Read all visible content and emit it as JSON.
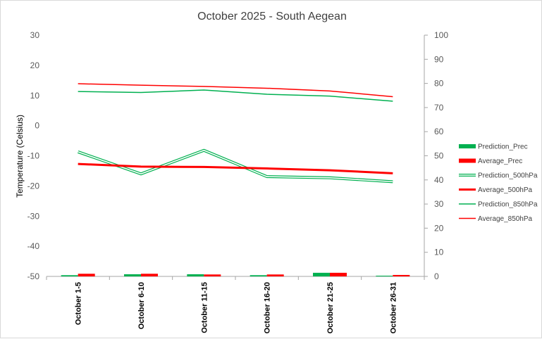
{
  "chart_data": {
    "type": "line",
    "title": "October 2025 - South Aegean",
    "ylabel": "Temperature (Celsius)",
    "xlabel": "",
    "categories": [
      "October 1-5",
      "October 6-10",
      "October 11-15",
      "October 16-20",
      "October 21-25",
      "October 26-31"
    ],
    "y_left": {
      "min": -50,
      "max": 30,
      "step": 10,
      "ticks": [
        "30",
        "20",
        "10",
        "0",
        "-10",
        "-20",
        "-30",
        "-40",
        "-50"
      ]
    },
    "y_right": {
      "min": 0,
      "max": 100,
      "step": 10,
      "ticks": [
        "100",
        "90",
        "80",
        "70",
        "60",
        "50",
        "40",
        "30",
        "20",
        "10",
        "0"
      ]
    },
    "gridlines": false,
    "legend_position": "right",
    "series": [
      {
        "name": "Prediction_Prec",
        "kind": "bar",
        "axis": "right",
        "color": "#00b050",
        "values": [
          0.5,
          0.9,
          0.9,
          0.5,
          1.5,
          0.3
        ]
      },
      {
        "name": "Average_Prec",
        "kind": "bar",
        "axis": "right",
        "color": "#ff0000",
        "values": [
          1.1,
          1.1,
          0.8,
          0.8,
          1.5,
          0.6
        ]
      },
      {
        "name": "Prediction_500hPa",
        "kind": "line",
        "style": "double",
        "axis": "left",
        "color": "#00b050",
        "values": [
          -8.7,
          -16.0,
          -8.2,
          -16.9,
          -17.3,
          -18.6
        ]
      },
      {
        "name": "Average_500hPa",
        "kind": "line",
        "style": "thick",
        "axis": "left",
        "color": "#ff0000",
        "values": [
          -12.7,
          -13.6,
          -13.7,
          -14.2,
          -14.8,
          -15.8
        ]
      },
      {
        "name": "Prediction_850hPa",
        "kind": "line",
        "style": "thin",
        "axis": "left",
        "color": "#00b050",
        "values": [
          11.3,
          11.0,
          11.8,
          10.4,
          9.8,
          8.1
        ]
      },
      {
        "name": "Average_850hPa",
        "kind": "line",
        "style": "thin",
        "axis": "left",
        "color": "#ff0000",
        "values": [
          13.9,
          13.4,
          13.0,
          12.4,
          11.5,
          9.6
        ]
      }
    ]
  }
}
